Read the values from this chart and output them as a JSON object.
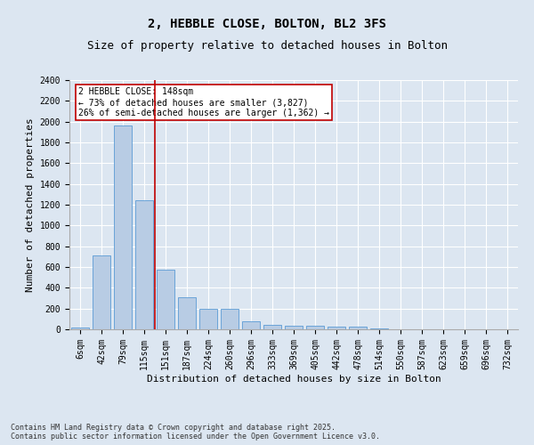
{
  "title_line1": "2, HEBBLE CLOSE, BOLTON, BL2 3FS",
  "title_line2": "Size of property relative to detached houses in Bolton",
  "xlabel": "Distribution of detached houses by size in Bolton",
  "ylabel": "Number of detached properties",
  "categories": [
    "6sqm",
    "42sqm",
    "79sqm",
    "115sqm",
    "151sqm",
    "187sqm",
    "224sqm",
    "260sqm",
    "296sqm",
    "333sqm",
    "369sqm",
    "405sqm",
    "442sqm",
    "478sqm",
    "514sqm",
    "550sqm",
    "587sqm",
    "623sqm",
    "659sqm",
    "696sqm",
    "732sqm"
  ],
  "values": [
    15,
    710,
    1960,
    1240,
    575,
    305,
    200,
    200,
    80,
    45,
    35,
    35,
    30,
    30,
    10,
    0,
    0,
    0,
    0,
    0,
    0
  ],
  "bar_color": "#b8cce4",
  "bar_edge_color": "#5b9bd5",
  "vline_x": 3.5,
  "vline_color": "#c00000",
  "annotation_text": "2 HEBBLE CLOSE: 148sqm\n← 73% of detached houses are smaller (3,827)\n26% of semi-detached houses are larger (1,362) →",
  "annotation_box_color": "#c00000",
  "annotation_box_fill": "white",
  "ylim": [
    0,
    2400
  ],
  "yticks": [
    0,
    200,
    400,
    600,
    800,
    1000,
    1200,
    1400,
    1600,
    1800,
    2000,
    2200,
    2400
  ],
  "background_color": "#dce6f1",
  "plot_bg_color": "#dce6f1",
  "footer_text": "Contains HM Land Registry data © Crown copyright and database right 2025.\nContains public sector information licensed under the Open Government Licence v3.0.",
  "title_fontsize": 10,
  "subtitle_fontsize": 9,
  "tick_fontsize": 7,
  "label_fontsize": 8,
  "footer_fontsize": 6
}
